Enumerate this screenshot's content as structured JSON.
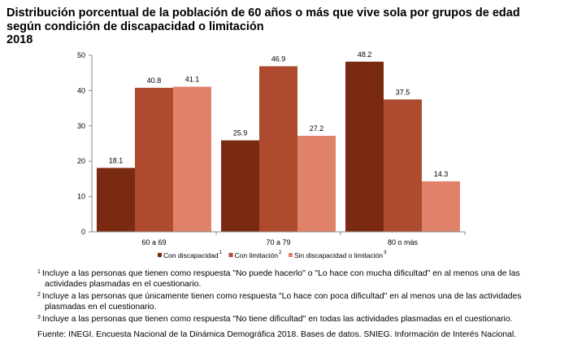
{
  "chart_data": {
    "type": "bar",
    "title": [
      "Distribución porcentual de la población de 60 años o más que vive sola por grupos de edad",
      "según condición de discapacidad o limitación",
      "2018"
    ],
    "categories": [
      "60 a 69",
      "70 a 79",
      "80 o más"
    ],
    "series": [
      {
        "name": "Con discapacidad",
        "sup": "1",
        "color": "#7B2A12",
        "values": [
          18.1,
          25.9,
          48.2
        ]
      },
      {
        "name": "Con limitación",
        "sup": "2",
        "color": "#AE4A2D",
        "values": [
          40.8,
          46.9,
          37.5
        ]
      },
      {
        "name": "Sin discapacidad o limitación",
        "sup": "3",
        "color": "#E0826A",
        "values": [
          41.1,
          27.2,
          14.3
        ]
      }
    ],
    "ylim": [
      0,
      50
    ],
    "yticks": [
      0,
      10,
      20,
      30,
      40,
      50
    ],
    "grid": false,
    "legend": "bottom",
    "xlabel": "",
    "ylabel": ""
  },
  "footnotes": [
    {
      "n": "1",
      "text": "Incluye a las personas que tienen como respuesta \"No puede hacerlo\" o \"Lo hace con mucha dificultad\" en al menos una de las actividades plasmadas en el cuestionario."
    },
    {
      "n": "2",
      "text": "Incluye a las personas que únicamente tienen como respuesta \"Lo hace con poca dificultad\" en al menos una de las actividades plasmadas en el cuestionario."
    },
    {
      "n": "3",
      "text": "Incluye a las personas que tienen como respuesta \"No tiene dificultad\" en todas las actividades plasmadas en el cuestionario."
    }
  ],
  "source": "Fuente: INEGI. Encuesta Nacional de la Dinámica Demográfica 2018. Bases de datos. SNIEG. Información de Interés Nacional."
}
